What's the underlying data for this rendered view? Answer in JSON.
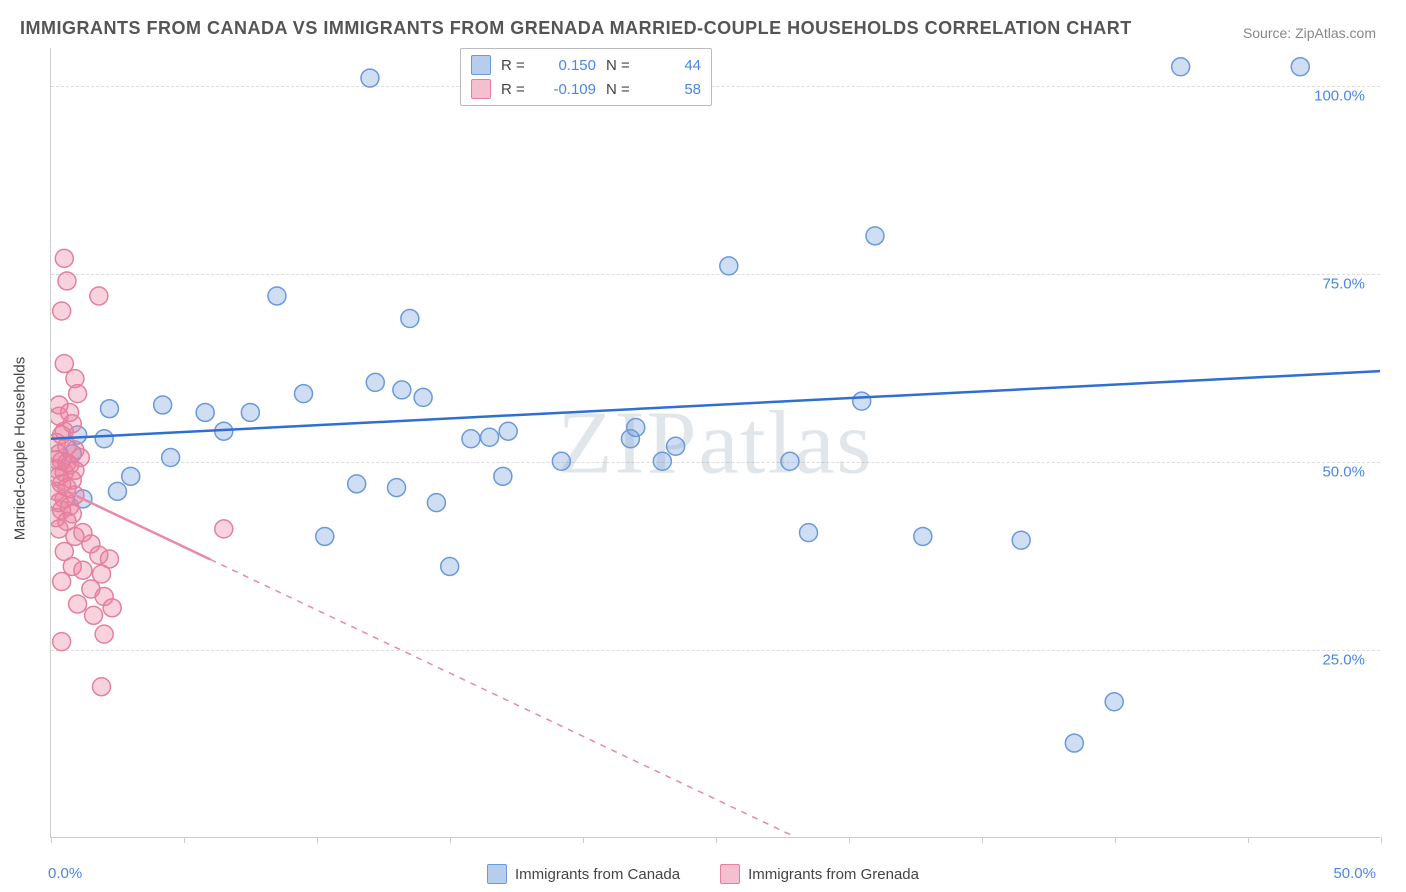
{
  "title": "IMMIGRANTS FROM CANADA VS IMMIGRANTS FROM GRENADA MARRIED-COUPLE HOUSEHOLDS CORRELATION CHART",
  "source": "Source: ZipAtlas.com",
  "watermark": "ZIPatlas",
  "ylabel": "Married-couple Households",
  "chart": {
    "type": "scatter",
    "xlim": [
      0,
      50
    ],
    "ylim": [
      0,
      105
    ],
    "yticks": [
      25,
      50,
      75,
      100
    ],
    "ytick_labels": [
      "25.0%",
      "50.0%",
      "75.0%",
      "100.0%"
    ],
    "xticks": [
      0,
      5,
      10,
      15,
      20,
      25,
      30,
      35,
      40,
      45,
      50
    ],
    "xtick_labels_shown": {
      "0": "0.0%",
      "50": "50.0%"
    },
    "background_color": "#ffffff",
    "grid_color": "#dddddd",
    "axis_color": "#cccccc",
    "marker_radius": 9,
    "marker_stroke_width": 1.5,
    "trendline_width": 2.5
  },
  "series": [
    {
      "name": "Immigrants from Canada",
      "color_fill": "rgba(120,160,220,0.35)",
      "color_stroke": "#6a9adb",
      "swatch_fill": "#b6cdec",
      "swatch_stroke": "#6a9adb",
      "R": "0.150",
      "N": "44",
      "trendline": {
        "x1": 0,
        "y1": 53,
        "x2": 50,
        "y2": 62,
        "dashed": false,
        "color": "#2f6fd0"
      },
      "points": [
        [
          42.5,
          102.5
        ],
        [
          47.0,
          102.5
        ],
        [
          12.0,
          101.0
        ],
        [
          31.0,
          80.0
        ],
        [
          25.5,
          76.0
        ],
        [
          8.5,
          72.0
        ],
        [
          13.5,
          69.0
        ],
        [
          12.2,
          60.5
        ],
        [
          13.2,
          59.5
        ],
        [
          14.0,
          58.5
        ],
        [
          2.2,
          57.0
        ],
        [
          4.2,
          57.5
        ],
        [
          5.8,
          56.5
        ],
        [
          7.5,
          56.5
        ],
        [
          9.5,
          59.0
        ],
        [
          30.5,
          58.0
        ],
        [
          17.2,
          54.0
        ],
        [
          16.5,
          53.2
        ],
        [
          15.8,
          53.0
        ],
        [
          21.8,
          53.0
        ],
        [
          1.0,
          53.5
        ],
        [
          2.0,
          53.0
        ],
        [
          4.5,
          50.5
        ],
        [
          19.2,
          50.0
        ],
        [
          23.0,
          50.0
        ],
        [
          27.8,
          50.0
        ],
        [
          11.5,
          47.0
        ],
        [
          13.0,
          46.5
        ],
        [
          14.5,
          44.5
        ],
        [
          17.0,
          48.0
        ],
        [
          28.5,
          40.5
        ],
        [
          32.8,
          40.0
        ],
        [
          10.3,
          40.0
        ],
        [
          36.5,
          39.5
        ],
        [
          15.0,
          36.0
        ],
        [
          40.0,
          18.0
        ],
        [
          38.5,
          12.5
        ],
        [
          1.2,
          45.0
        ],
        [
          2.5,
          46.0
        ],
        [
          3.0,
          48.0
        ],
        [
          6.5,
          54.0
        ],
        [
          22.0,
          54.5
        ],
        [
          0.8,
          51.0
        ],
        [
          23.5,
          52.0
        ]
      ]
    },
    {
      "name": "Immigrants from Grenada",
      "color_fill": "rgba(235,130,160,0.35)",
      "color_stroke": "#e4809f",
      "swatch_fill": "#f4c0d0",
      "swatch_stroke": "#e4809f",
      "R": "-0.109",
      "N": "58",
      "trendline": {
        "x1": 0,
        "y1": 47,
        "x2": 28,
        "y2": 0,
        "dashed": true,
        "color": "#e88aa5",
        "solid_until_x": 6
      },
      "points": [
        [
          0.5,
          77.0
        ],
        [
          0.6,
          74.0
        ],
        [
          1.8,
          72.0
        ],
        [
          0.4,
          70.0
        ],
        [
          0.5,
          63.0
        ],
        [
          0.9,
          61.0
        ],
        [
          1.0,
          59.0
        ],
        [
          0.3,
          56.0
        ],
        [
          0.8,
          55.0
        ],
        [
          0.5,
          54.0
        ],
        [
          0.2,
          52.5
        ],
        [
          0.6,
          52.0
        ],
        [
          0.9,
          51.5
        ],
        [
          0.3,
          51.0
        ],
        [
          0.4,
          50.0
        ],
        [
          0.7,
          49.5
        ],
        [
          0.2,
          49.0
        ],
        [
          0.5,
          48.5
        ],
        [
          0.3,
          48.0
        ],
        [
          0.8,
          47.5
        ],
        [
          0.4,
          47.0
        ],
        [
          0.6,
          46.5
        ],
        [
          0.2,
          46.0
        ],
        [
          0.9,
          45.5
        ],
        [
          0.5,
          45.0
        ],
        [
          0.3,
          44.5
        ],
        [
          0.7,
          44.0
        ],
        [
          0.4,
          43.5
        ],
        [
          0.8,
          43.0
        ],
        [
          0.2,
          42.5
        ],
        [
          0.6,
          42.0
        ],
        [
          0.3,
          41.0
        ],
        [
          0.9,
          40.0
        ],
        [
          1.2,
          40.5
        ],
        [
          1.5,
          39.0
        ],
        [
          0.5,
          38.0
        ],
        [
          1.8,
          37.5
        ],
        [
          0.8,
          36.0
        ],
        [
          1.2,
          35.5
        ],
        [
          1.9,
          35.0
        ],
        [
          2.2,
          37.0
        ],
        [
          0.4,
          34.0
        ],
        [
          1.5,
          33.0
        ],
        [
          2.0,
          32.0
        ],
        [
          1.0,
          31.0
        ],
        [
          2.3,
          30.5
        ],
        [
          1.6,
          29.5
        ],
        [
          0.4,
          26.0
        ],
        [
          2.0,
          27.0
        ],
        [
          1.9,
          20.0
        ],
        [
          6.5,
          41.0
        ],
        [
          0.3,
          57.5
        ],
        [
          0.7,
          56.5
        ],
        [
          0.4,
          53.5
        ],
        [
          1.1,
          50.5
        ],
        [
          0.2,
          50.2
        ],
        [
          0.6,
          49.8
        ],
        [
          0.9,
          48.8
        ]
      ]
    }
  ],
  "legend_bottom": [
    {
      "label": "Immigrants from Canada",
      "fill": "#b6cdec",
      "stroke": "#6a9adb"
    },
    {
      "label": "Immigrants from Grenada",
      "fill": "#f4c0d0",
      "stroke": "#e4809f"
    }
  ],
  "legend_top_labels": {
    "R": "R =",
    "N": "N ="
  }
}
